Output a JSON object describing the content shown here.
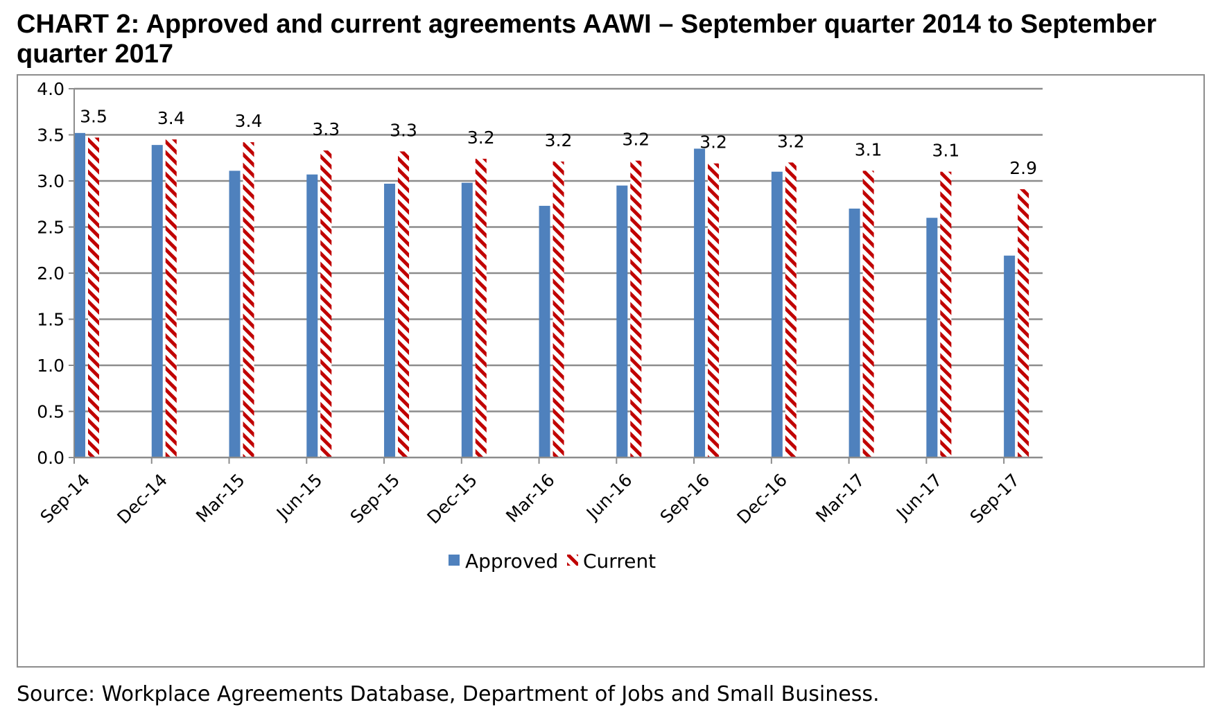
{
  "chart_data": {
    "type": "bar",
    "title": "CHART 2: Approved and current agreements AAWI – September quarter 2014 to September quarter 2017",
    "categories": [
      "Sep-14",
      "Dec-14",
      "Mar-15",
      "Jun-15",
      "Sep-15",
      "Dec-15",
      "Mar-16",
      "Jun-16",
      "Sep-16",
      "Dec-16",
      "Mar-17",
      "Jun-17",
      "Sep-17"
    ],
    "series": [
      {
        "name": "Approved",
        "color": "#4f81bd",
        "pattern": "solid",
        "values": [
          3.52,
          3.39,
          3.11,
          3.07,
          2.97,
          2.98,
          2.73,
          2.95,
          3.35,
          3.1,
          2.7,
          2.6,
          2.19
        ]
      },
      {
        "name": "Current",
        "color": "#c00000",
        "pattern": "diagonal-hatch",
        "values": [
          3.47,
          3.45,
          3.42,
          3.33,
          3.32,
          3.24,
          3.21,
          3.22,
          3.19,
          3.2,
          3.11,
          3.1,
          2.91
        ],
        "data_labels": [
          "3.5",
          "3.4",
          "3.4",
          "3.3",
          "3.3",
          "3.2",
          "3.2",
          "3.2",
          "3.2",
          "3.2",
          "3.1",
          "3.1",
          "2.9"
        ]
      }
    ],
    "xlabel": "",
    "ylabel": "",
    "ylim": [
      0,
      4.0
    ],
    "yticks": [
      "0.0",
      "0.5",
      "1.0",
      "1.5",
      "2.0",
      "2.5",
      "3.0",
      "3.5",
      "4.0"
    ],
    "grid": true,
    "legend_position": "bottom-center"
  },
  "source_note": "Source: Workplace Agreements Database, Department of Jobs and Small Business.",
  "colors": {
    "approved": "#4f81bd",
    "current": "#c00000",
    "gridline": "#8c8c8c"
  }
}
